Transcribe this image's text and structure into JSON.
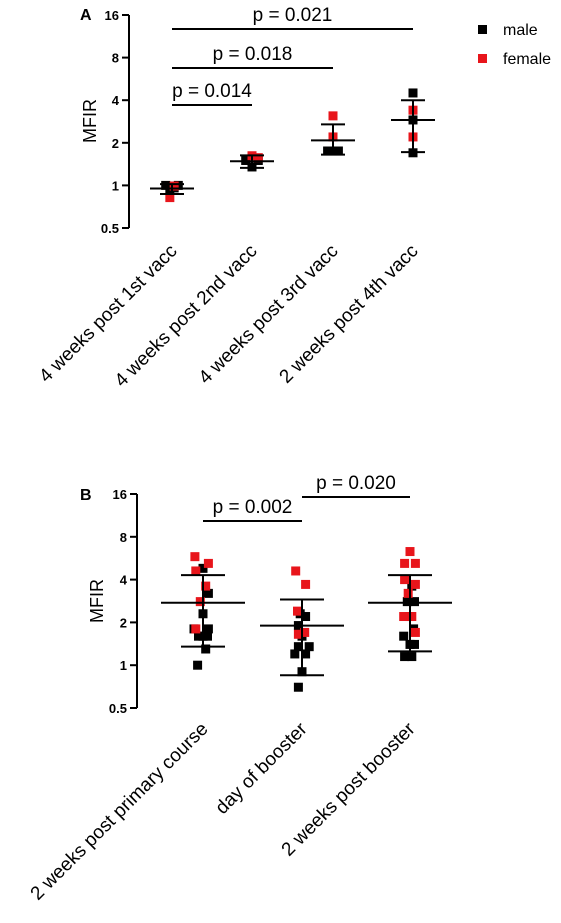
{
  "colors": {
    "male": "#000000",
    "female": "#e8151b"
  },
  "legend": {
    "male_label": "male",
    "female_label": "female"
  },
  "chart_data": [
    {
      "type": "scatter",
      "panel_label": "A",
      "ylabel": "MFIR",
      "yscale": "log2",
      "ylim": [
        0.5,
        16
      ],
      "yticks": [
        0.5,
        1,
        2,
        4,
        8,
        16
      ],
      "categories": [
        "4 weeks post 1st vacc",
        "4 weeks post 2nd vacc",
        "4 weeks post 3rd vacc",
        "2 weeks post 4th vacc"
      ],
      "stats": [
        {
          "mean": 0.95,
          "lower": 0.87,
          "upper": 1.02
        },
        {
          "mean": 1.48,
          "lower": 1.33,
          "upper": 1.63
        },
        {
          "mean": 2.08,
          "lower": 1.65,
          "upper": 2.7
        },
        {
          "mean": 2.9,
          "lower": 1.72,
          "upper": 4.0
        }
      ],
      "points": [
        {
          "cat": 0,
          "dx": -0.35,
          "y": 1.0,
          "sex": "male"
        },
        {
          "cat": 0,
          "dx": -0.12,
          "y": 0.93,
          "sex": "male"
        },
        {
          "cat": 0,
          "dx": 0.12,
          "y": 0.96,
          "sex": "male"
        },
        {
          "cat": 0,
          "dx": 0.35,
          "y": 1.0,
          "sex": "male"
        },
        {
          "cat": 0,
          "dx": -0.12,
          "y": 0.82,
          "sex": "female"
        },
        {
          "cat": 0,
          "dx": 0.12,
          "y": 0.99,
          "sex": "female"
        },
        {
          "cat": 1,
          "dx": -0.35,
          "y": 1.5,
          "sex": "male"
        },
        {
          "cat": 1,
          "dx": 0.0,
          "y": 1.35,
          "sex": "male"
        },
        {
          "cat": 1,
          "dx": 0.35,
          "y": 1.5,
          "sex": "male"
        },
        {
          "cat": 1,
          "dx": 0.0,
          "y": 1.62,
          "sex": "female"
        },
        {
          "cat": 1,
          "dx": 0.35,
          "y": 1.57,
          "sex": "female"
        },
        {
          "cat": 2,
          "dx": -0.3,
          "y": 1.75,
          "sex": "male"
        },
        {
          "cat": 2,
          "dx": 0.0,
          "y": 1.75,
          "sex": "male"
        },
        {
          "cat": 2,
          "dx": 0.3,
          "y": 1.75,
          "sex": "male"
        },
        {
          "cat": 2,
          "dx": 0.0,
          "y": 2.2,
          "sex": "female"
        },
        {
          "cat": 2,
          "dx": 0.0,
          "y": 3.1,
          "sex": "female"
        },
        {
          "cat": 3,
          "dx": 0.0,
          "y": 4.5,
          "sex": "male"
        },
        {
          "cat": 3,
          "dx": 0.0,
          "y": 2.9,
          "sex": "male"
        },
        {
          "cat": 3,
          "dx": 0.0,
          "y": 1.7,
          "sex": "male"
        },
        {
          "cat": 3,
          "dx": 0.0,
          "y": 2.2,
          "sex": "female"
        },
        {
          "cat": 3,
          "dx": 0.0,
          "y": 3.4,
          "sex": "female"
        }
      ],
      "comparisons": [
        {
          "from": 0,
          "to": 1,
          "y": 1.35,
          "label": "p = 0.014"
        },
        {
          "from": 0,
          "to": 2,
          "y": 0.85,
          "label": "p = 0.018"
        },
        {
          "from": 0,
          "to": 3,
          "y": 0.15,
          "label": "p = 0.021"
        }
      ]
    },
    {
      "type": "scatter",
      "panel_label": "B",
      "ylabel": "MFIR",
      "yscale": "log2",
      "ylim": [
        0.5,
        16
      ],
      "yticks": [
        0.5,
        1,
        2,
        4,
        8,
        16
      ],
      "categories": [
        "2 weeks post primary course",
        "day of booster",
        "2 weeks post booster"
      ],
      "stats": [
        {
          "mean": 2.75,
          "lower": 1.35,
          "upper": 4.3
        },
        {
          "mean": 1.9,
          "lower": 0.85,
          "upper": 2.9
        },
        {
          "mean": 2.75,
          "lower": 1.25,
          "upper": 4.3
        }
      ],
      "points": [
        {
          "cat": 0,
          "dx": -0.5,
          "y": 1.8,
          "sex": "male"
        },
        {
          "cat": 0,
          "dx": -0.25,
          "y": 1.6,
          "sex": "male"
        },
        {
          "cat": 0,
          "dx": 0.0,
          "y": 1.6,
          "sex": "male"
        },
        {
          "cat": 0,
          "dx": 0.25,
          "y": 1.6,
          "sex": "male"
        },
        {
          "cat": 0,
          "dx": -0.3,
          "y": 1.0,
          "sex": "male"
        },
        {
          "cat": 0,
          "dx": 0.15,
          "y": 1.3,
          "sex": "male"
        },
        {
          "cat": 0,
          "dx": 0.3,
          "y": 1.8,
          "sex": "male"
        },
        {
          "cat": 0,
          "dx": 0.0,
          "y": 2.3,
          "sex": "male"
        },
        {
          "cat": 0,
          "dx": 0.3,
          "y": 3.2,
          "sex": "male"
        },
        {
          "cat": 0,
          "dx": 0.0,
          "y": 4.8,
          "sex": "male"
        },
        {
          "cat": 0,
          "dx": -0.45,
          "y": 5.8,
          "sex": "female"
        },
        {
          "cat": 0,
          "dx": -0.4,
          "y": 4.6,
          "sex": "female"
        },
        {
          "cat": 0,
          "dx": 0.3,
          "y": 5.2,
          "sex": "female"
        },
        {
          "cat": 0,
          "dx": 0.15,
          "y": 3.6,
          "sex": "female"
        },
        {
          "cat": 0,
          "dx": -0.15,
          "y": 2.8,
          "sex": "female"
        },
        {
          "cat": 0,
          "dx": -0.4,
          "y": 1.8,
          "sex": "female"
        },
        {
          "cat": 1,
          "dx": -0.2,
          "y": 0.7,
          "sex": "male"
        },
        {
          "cat": 1,
          "dx": 0.0,
          "y": 0.9,
          "sex": "male"
        },
        {
          "cat": 1,
          "dx": -0.4,
          "y": 1.2,
          "sex": "male"
        },
        {
          "cat": 1,
          "dx": -0.2,
          "y": 1.35,
          "sex": "male"
        },
        {
          "cat": 1,
          "dx": 0.2,
          "y": 1.2,
          "sex": "male"
        },
        {
          "cat": 1,
          "dx": 0.4,
          "y": 1.35,
          "sex": "male"
        },
        {
          "cat": 1,
          "dx": 0.0,
          "y": 1.6,
          "sex": "male"
        },
        {
          "cat": 1,
          "dx": -0.2,
          "y": 1.9,
          "sex": "male"
        },
        {
          "cat": 1,
          "dx": -0.1,
          "y": 2.3,
          "sex": "male"
        },
        {
          "cat": 1,
          "dx": 0.2,
          "y": 2.2,
          "sex": "male"
        },
        {
          "cat": 1,
          "dx": -0.35,
          "y": 4.6,
          "sex": "female"
        },
        {
          "cat": 1,
          "dx": 0.2,
          "y": 3.7,
          "sex": "female"
        },
        {
          "cat": 1,
          "dx": -0.25,
          "y": 2.4,
          "sex": "female"
        },
        {
          "cat": 1,
          "dx": 0.15,
          "y": 1.7,
          "sex": "female"
        },
        {
          "cat": 1,
          "dx": -0.2,
          "y": 1.65,
          "sex": "female"
        },
        {
          "cat": 2,
          "dx": -0.3,
          "y": 1.15,
          "sex": "male"
        },
        {
          "cat": 2,
          "dx": 0.1,
          "y": 1.15,
          "sex": "male"
        },
        {
          "cat": 2,
          "dx": -0.35,
          "y": 1.6,
          "sex": "male"
        },
        {
          "cat": 2,
          "dx": 0.0,
          "y": 1.4,
          "sex": "male"
        },
        {
          "cat": 2,
          "dx": 0.25,
          "y": 1.4,
          "sex": "male"
        },
        {
          "cat": 2,
          "dx": 0.2,
          "y": 1.8,
          "sex": "male"
        },
        {
          "cat": 2,
          "dx": 0.0,
          "y": 2.2,
          "sex": "male"
        },
        {
          "cat": 2,
          "dx": -0.15,
          "y": 2.8,
          "sex": "male"
        },
        {
          "cat": 2,
          "dx": 0.25,
          "y": 2.8,
          "sex": "male"
        },
        {
          "cat": 2,
          "dx": 0.1,
          "y": 3.6,
          "sex": "male"
        },
        {
          "cat": 2,
          "dx": 0.0,
          "y": 6.3,
          "sex": "female"
        },
        {
          "cat": 2,
          "dx": -0.3,
          "y": 5.2,
          "sex": "female"
        },
        {
          "cat": 2,
          "dx": 0.3,
          "y": 5.2,
          "sex": "female"
        },
        {
          "cat": 2,
          "dx": -0.3,
          "y": 4.0,
          "sex": "female"
        },
        {
          "cat": 2,
          "dx": -0.1,
          "y": 3.2,
          "sex": "female"
        },
        {
          "cat": 2,
          "dx": 0.3,
          "y": 3.7,
          "sex": "female"
        },
        {
          "cat": 2,
          "dx": 0.1,
          "y": 2.2,
          "sex": "female"
        },
        {
          "cat": 2,
          "dx": -0.35,
          "y": 2.2,
          "sex": "female"
        },
        {
          "cat": 2,
          "dx": 0.3,
          "y": 1.7,
          "sex": "female"
        }
      ],
      "comparisons": [
        {
          "from": 0,
          "to": 1,
          "y": 1.0,
          "label": "p = 0.002"
        },
        {
          "from": 1,
          "to": 2,
          "y": 0.0,
          "label": "p = 0.020"
        }
      ]
    }
  ]
}
